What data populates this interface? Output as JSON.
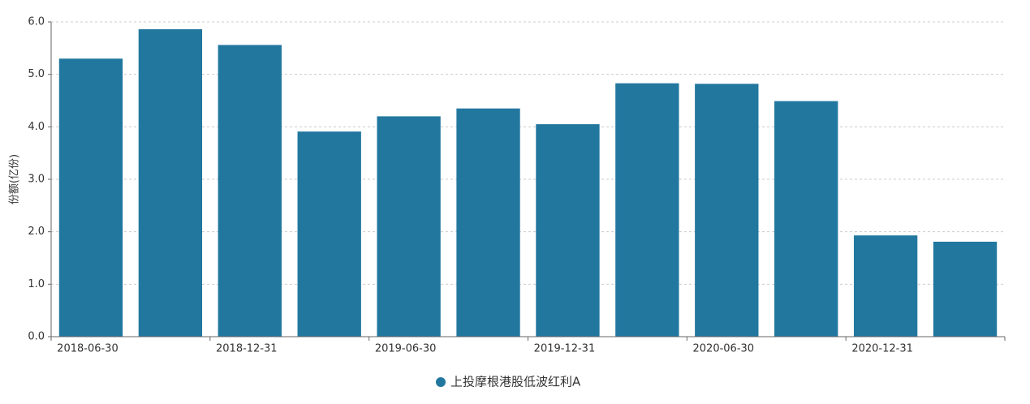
{
  "chart_data": {
    "type": "bar",
    "y_label": "份额(亿份)",
    "categories": [
      "2018-06-30",
      null,
      "2018-12-31",
      null,
      "2019-06-30",
      null,
      "2019-12-31",
      null,
      "2020-06-30",
      null,
      "2020-12-31",
      null
    ],
    "series": [
      {
        "name": "上投摩根港股低波红利A",
        "color": "#22779f",
        "values": [
          5.3,
          5.86,
          5.56,
          3.91,
          4.2,
          4.35,
          4.05,
          4.83,
          4.82,
          4.49,
          1.93,
          1.81
        ]
      }
    ],
    "ylim": [
      0,
      6
    ],
    "yticks": [
      {
        "value": 0,
        "label": "0.0"
      },
      {
        "value": 1,
        "label": "1.0"
      },
      {
        "value": 2,
        "label": "2.0"
      },
      {
        "value": 3,
        "label": "3.0"
      },
      {
        "value": 4,
        "label": "4.0"
      },
      {
        "value": 5,
        "label": "5.0"
      },
      {
        "value": 6,
        "label": "6.0"
      }
    ],
    "grid": true
  }
}
